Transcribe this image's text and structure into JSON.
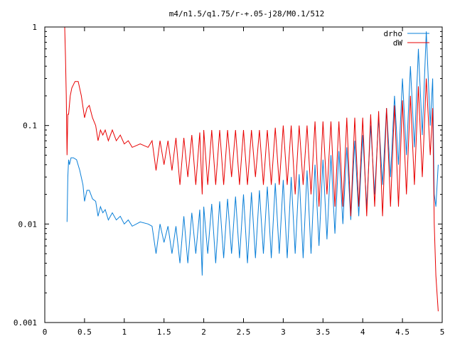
{
  "chart_data": {
    "type": "line",
    "title": "m4/n1.5/q1.75/r-+.05-j28/M0.1/512",
    "xlabel": "",
    "ylabel": "",
    "xlim": [
      0,
      5
    ],
    "ylim": [
      0.001,
      1
    ],
    "yscale": "log",
    "grid": false,
    "legend_position": "top-right",
    "x_ticks": [
      "0",
      "0.5",
      "1",
      "1.5",
      "2",
      "2.5",
      "3",
      "3.5",
      "4",
      "4.5",
      "5"
    ],
    "x_tick_values": [
      0,
      0.5,
      1,
      1.5,
      2,
      2.5,
      3,
      3.5,
      4,
      4.5,
      5
    ],
    "y_ticks": [
      "1",
      "0.1",
      "0.01",
      "0.001"
    ],
    "y_tick_values": [
      1,
      0.1,
      0.01,
      0.001
    ],
    "series": [
      {
        "name": "drho",
        "color": "#0a7fd8",
        "x": [
          0.28,
          0.29,
          0.3,
          0.31,
          0.33,
          0.36,
          0.4,
          0.44,
          0.48,
          0.5,
          0.53,
          0.56,
          0.6,
          0.64,
          0.67,
          0.7,
          0.73,
          0.76,
          0.8,
          0.85,
          0.9,
          0.95,
          1.0,
          1.05,
          1.1,
          1.2,
          1.3,
          1.35,
          1.4,
          1.45,
          1.5,
          1.55,
          1.6,
          1.65,
          1.7,
          1.75,
          1.8,
          1.85,
          1.9,
          1.95,
          1.98,
          2.0,
          2.05,
          2.1,
          2.15,
          2.2,
          2.25,
          2.3,
          2.35,
          2.4,
          2.45,
          2.5,
          2.55,
          2.6,
          2.65,
          2.7,
          2.75,
          2.8,
          2.85,
          2.9,
          2.95,
          3.0,
          3.05,
          3.1,
          3.15,
          3.2,
          3.25,
          3.3,
          3.35,
          3.4,
          3.45,
          3.5,
          3.55,
          3.6,
          3.65,
          3.7,
          3.75,
          3.8,
          3.85,
          3.9,
          3.95,
          4.0,
          4.05,
          4.1,
          4.15,
          4.2,
          4.25,
          4.3,
          4.35,
          4.4,
          4.45,
          4.5,
          4.55,
          4.6,
          4.65,
          4.7,
          4.75,
          4.8,
          4.85,
          4.88,
          4.9,
          4.92,
          4.95
        ],
        "y": [
          0.0105,
          0.03,
          0.045,
          0.04,
          0.047,
          0.047,
          0.045,
          0.035,
          0.025,
          0.017,
          0.022,
          0.022,
          0.018,
          0.017,
          0.012,
          0.015,
          0.013,
          0.014,
          0.011,
          0.013,
          0.011,
          0.012,
          0.01,
          0.011,
          0.0095,
          0.0105,
          0.01,
          0.0095,
          0.005,
          0.01,
          0.0065,
          0.0095,
          0.005,
          0.0095,
          0.004,
          0.012,
          0.004,
          0.013,
          0.005,
          0.014,
          0.003,
          0.015,
          0.005,
          0.016,
          0.004,
          0.017,
          0.0045,
          0.018,
          0.005,
          0.019,
          0.0045,
          0.02,
          0.004,
          0.021,
          0.0045,
          0.022,
          0.005,
          0.024,
          0.0045,
          0.026,
          0.005,
          0.028,
          0.0045,
          0.03,
          0.005,
          0.032,
          0.0045,
          0.035,
          0.005,
          0.04,
          0.006,
          0.045,
          0.007,
          0.05,
          0.008,
          0.055,
          0.01,
          0.06,
          0.011,
          0.07,
          0.012,
          0.08,
          0.015,
          0.1,
          0.02,
          0.12,
          0.025,
          0.15,
          0.03,
          0.2,
          0.04,
          0.3,
          0.05,
          0.4,
          0.06,
          0.6,
          0.08,
          0.9,
          0.1,
          0.3,
          0.02,
          0.015,
          0.04
        ]
      },
      {
        "name": "dW",
        "color": "#e80000",
        "x": [
          0.25,
          0.26,
          0.27,
          0.28,
          0.29,
          0.3,
          0.32,
          0.34,
          0.38,
          0.42,
          0.46,
          0.5,
          0.53,
          0.56,
          0.6,
          0.64,
          0.67,
          0.7,
          0.73,
          0.76,
          0.8,
          0.85,
          0.9,
          0.95,
          1.0,
          1.05,
          1.1,
          1.2,
          1.3,
          1.35,
          1.4,
          1.45,
          1.5,
          1.55,
          1.6,
          1.65,
          1.7,
          1.75,
          1.8,
          1.85,
          1.9,
          1.95,
          1.98,
          2.0,
          2.05,
          2.1,
          2.15,
          2.2,
          2.25,
          2.3,
          2.35,
          2.4,
          2.45,
          2.5,
          2.55,
          2.6,
          2.65,
          2.7,
          2.75,
          2.8,
          2.85,
          2.9,
          2.95,
          3.0,
          3.05,
          3.1,
          3.15,
          3.2,
          3.25,
          3.3,
          3.35,
          3.4,
          3.45,
          3.5,
          3.55,
          3.6,
          3.65,
          3.7,
          3.75,
          3.8,
          3.85,
          3.9,
          3.95,
          4.0,
          4.05,
          4.1,
          4.15,
          4.2,
          4.25,
          4.3,
          4.35,
          4.4,
          4.45,
          4.5,
          4.55,
          4.6,
          4.65,
          4.7,
          4.75,
          4.8,
          4.85,
          4.88,
          4.9,
          4.92,
          4.95
        ],
        "y": [
          1.0,
          0.5,
          0.2,
          0.05,
          0.13,
          0.13,
          0.2,
          0.24,
          0.28,
          0.28,
          0.2,
          0.12,
          0.15,
          0.16,
          0.12,
          0.1,
          0.07,
          0.09,
          0.08,
          0.09,
          0.07,
          0.09,
          0.07,
          0.08,
          0.065,
          0.07,
          0.06,
          0.065,
          0.06,
          0.07,
          0.035,
          0.07,
          0.04,
          0.07,
          0.035,
          0.075,
          0.025,
          0.075,
          0.03,
          0.08,
          0.025,
          0.085,
          0.02,
          0.09,
          0.025,
          0.09,
          0.025,
          0.09,
          0.025,
          0.09,
          0.03,
          0.09,
          0.025,
          0.09,
          0.025,
          0.09,
          0.03,
          0.09,
          0.025,
          0.09,
          0.025,
          0.095,
          0.025,
          0.1,
          0.025,
          0.1,
          0.02,
          0.1,
          0.025,
          0.1,
          0.02,
          0.11,
          0.015,
          0.11,
          0.02,
          0.11,
          0.015,
          0.11,
          0.015,
          0.12,
          0.012,
          0.12,
          0.015,
          0.12,
          0.012,
          0.13,
          0.015,
          0.14,
          0.012,
          0.15,
          0.015,
          0.16,
          0.015,
          0.18,
          0.02,
          0.2,
          0.025,
          0.25,
          0.03,
          0.3,
          0.05,
          0.15,
          0.01,
          0.003,
          0.0013
        ]
      }
    ]
  }
}
